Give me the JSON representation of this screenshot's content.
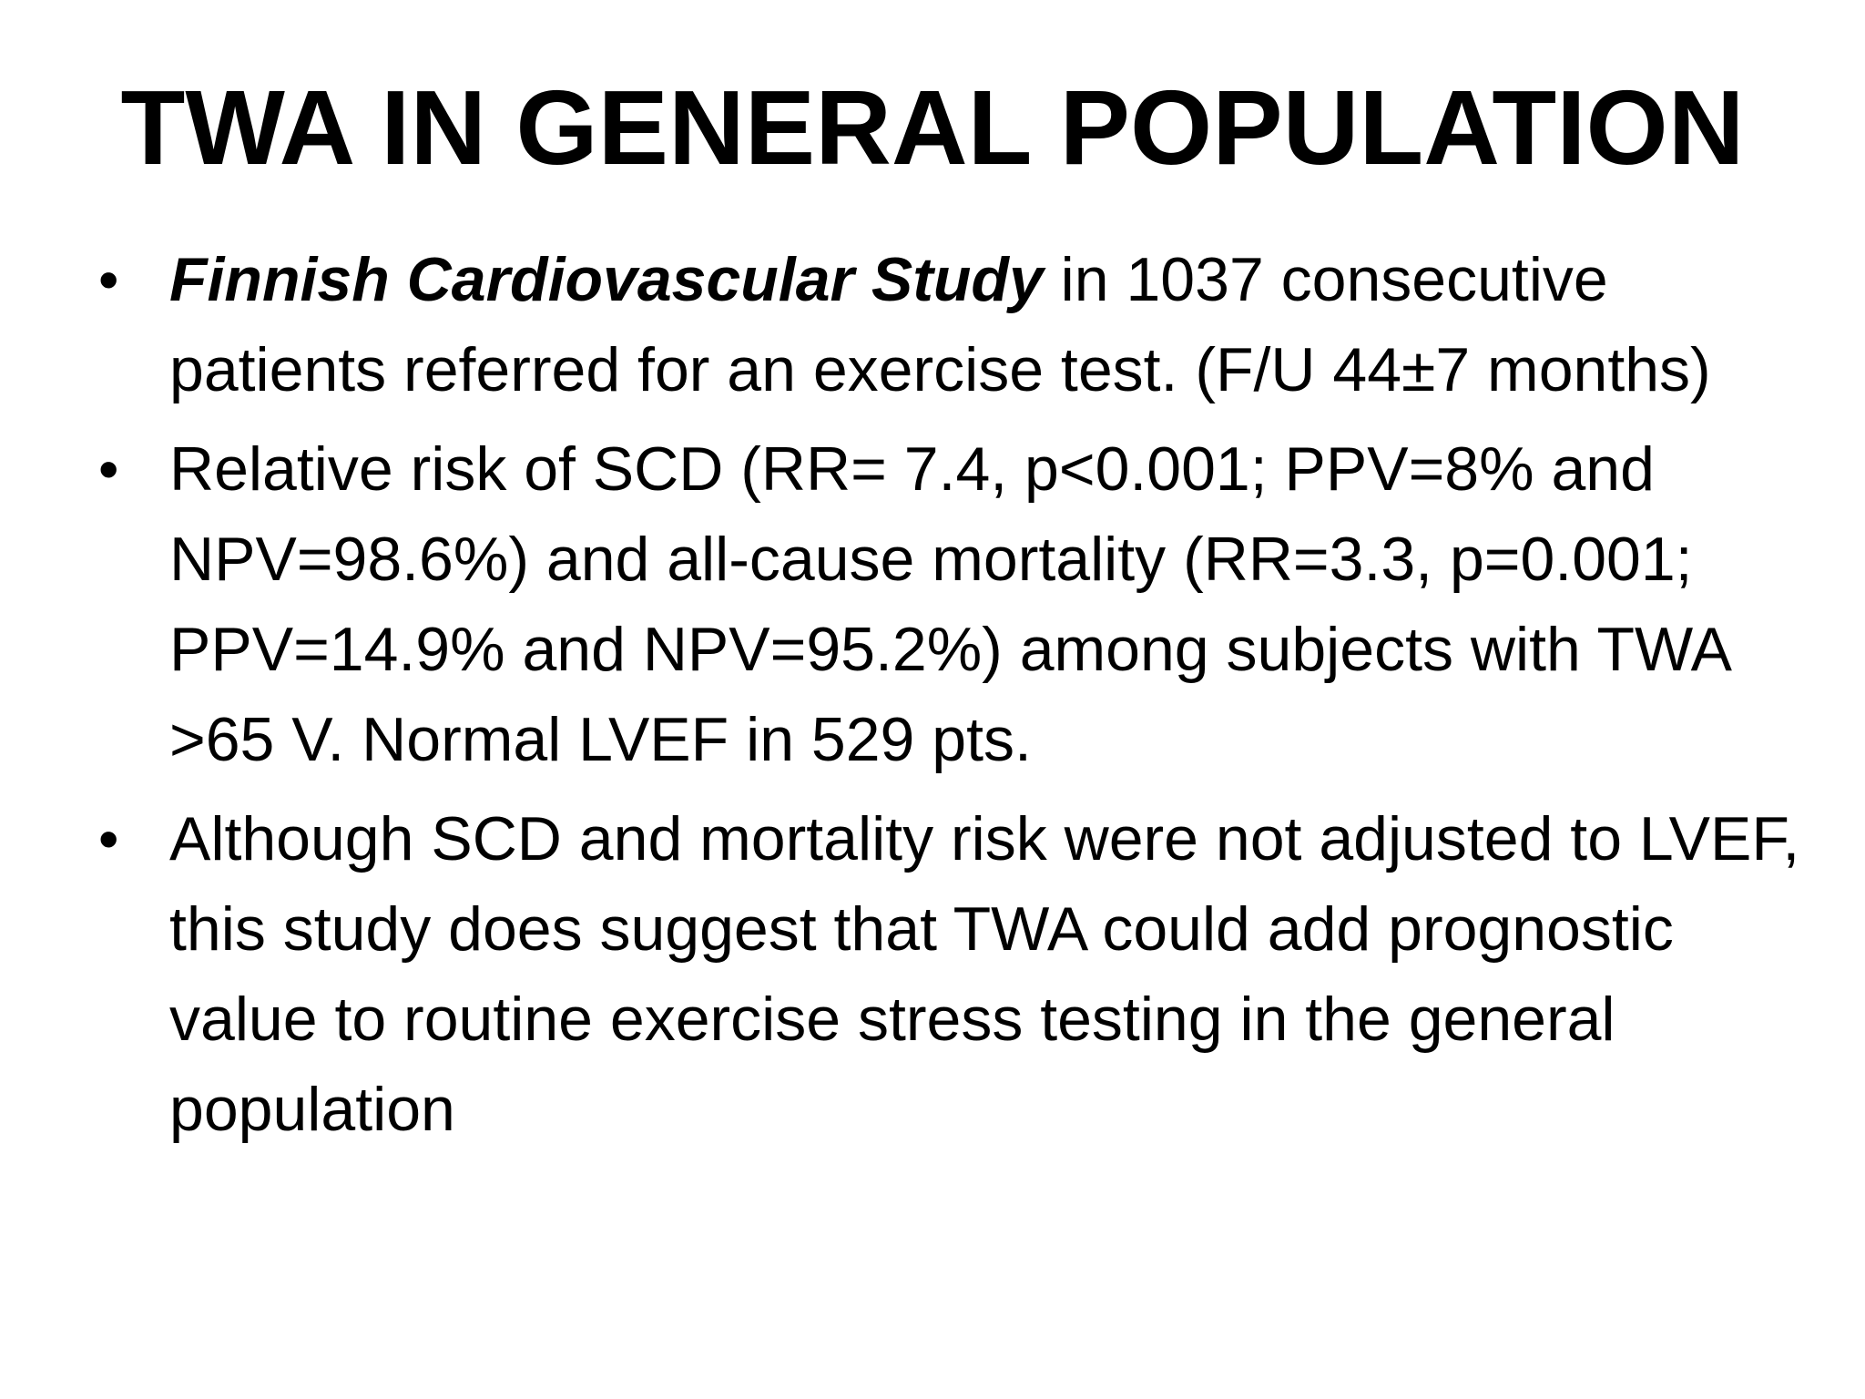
{
  "slide": {
    "title": "TWA IN GENERAL POPULATION",
    "bullets": [
      {
        "emphasis": "Finnish Cardiovascular Study",
        "text": " in 1037 consecutive patients referred for an exercise test. (F/U 44±7 months)"
      },
      {
        "emphasis": "",
        "text": "Relative risk of SCD (RR= 7.4, p<0.001; PPV=8% and NPV=98.6%) and all-cause mortality (RR=3.3, p=0.001; PPV=14.9% and NPV=95.2%) among subjects with TWA >65 V. Normal LVEF in 529 pts."
      },
      {
        "emphasis": "",
        "text": "Although SCD and mortality risk were not adjusted to LVEF, this study does suggest that TWA could add prognostic value to routine exercise stress testing in the general population"
      }
    ],
    "bullet_glyph": "•"
  }
}
